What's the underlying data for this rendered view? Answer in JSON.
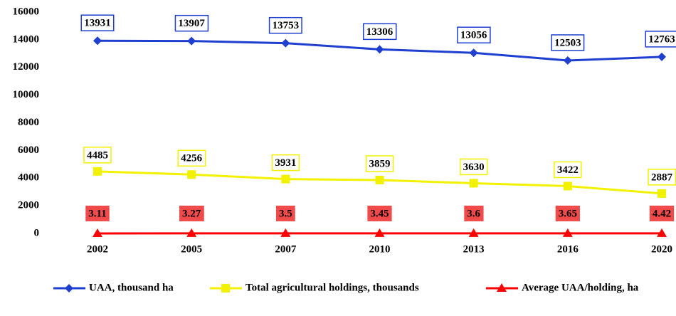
{
  "chart_data": {
    "type": "line",
    "categories": [
      "2002",
      "2005",
      "2007",
      "2010",
      "2013",
      "2016",
      "2020"
    ],
    "series": [
      {
        "name": "UAA, thousand ha",
        "color": "#1f3fd0",
        "marker": "diamond",
        "values": [
          13931,
          13907,
          13753,
          13306,
          13056,
          12503,
          12763
        ]
      },
      {
        "name": "Total agricultural holdings, thousands",
        "color": "#f2f200",
        "marker": "square",
        "values": [
          4485,
          4256,
          3931,
          3859,
          3630,
          3422,
          2887
        ]
      },
      {
        "name": "Average UAA/holding, ha",
        "color": "#ff0000",
        "marker": "triangle",
        "values": [
          3.11,
          3.27,
          3.5,
          3.45,
          3.6,
          3.65,
          4.42
        ]
      }
    ],
    "ylim": [
      0,
      16000
    ],
    "yticks": [
      0,
      2000,
      4000,
      6000,
      8000,
      10000,
      12000,
      14000,
      16000
    ],
    "legend": "bottom"
  }
}
